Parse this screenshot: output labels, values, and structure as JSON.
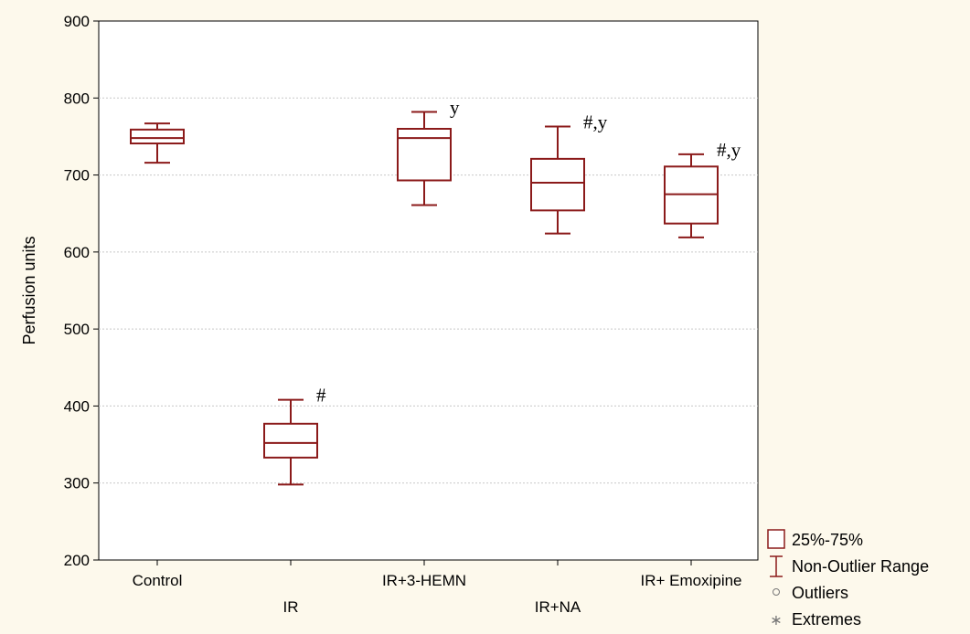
{
  "chart_data": {
    "type": "boxplot",
    "ylabel": "Perfusion units",
    "ylim": [
      200,
      900
    ],
    "yticks": [
      200,
      300,
      400,
      500,
      600,
      700,
      800,
      900
    ],
    "grid": true,
    "categories": [
      "Control",
      "IR",
      "IR+3-HEMN",
      "IR+NA",
      "IR+ Emoxipine"
    ],
    "boxes": [
      {
        "category": "Control",
        "min": 716,
        "q1": 741,
        "median": 748,
        "q3": 759,
        "max": 767,
        "annotation": ""
      },
      {
        "category": "IR",
        "min": 298,
        "q1": 333,
        "median": 352,
        "q3": 377,
        "max": 408,
        "annotation": "#"
      },
      {
        "category": "IR+3-HEMN",
        "min": 661,
        "q1": 693,
        "median": 748,
        "q3": 760,
        "max": 782,
        "annotation": "y"
      },
      {
        "category": "IR+NA",
        "min": 624,
        "q1": 654,
        "median": 690,
        "q3": 721,
        "max": 763,
        "annotation": "#,y"
      },
      {
        "category": "IR+ Emoxipine",
        "min": 619,
        "q1": 637,
        "median": 675,
        "q3": 711,
        "max": 727,
        "annotation": "#,y"
      }
    ],
    "legend": {
      "position": "bottom-right",
      "items": [
        {
          "label": "25%-75%",
          "symbol": "box"
        },
        {
          "label": "Non-Outlier Range",
          "symbol": "whisker"
        },
        {
          "label": "Outliers",
          "symbol": "circle"
        },
        {
          "label": "Extremes",
          "symbol": "asterisk"
        }
      ]
    },
    "colors": {
      "box": "#8b1a1a",
      "grid": "#c8c8c8",
      "plot_bg": "#ffffff",
      "page_bg": "#fdf9ec"
    }
  }
}
